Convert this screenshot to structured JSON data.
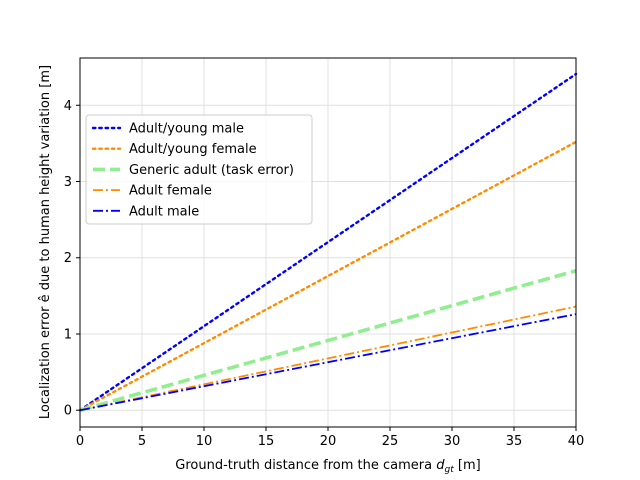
{
  "chart_data": {
    "type": "line",
    "title": "",
    "xlabel_main": "Ground-truth distance from the camera ",
    "xlabel_symbol": "d",
    "xlabel_subscript": "gt",
    "xlabel_unit": " [m]",
    "ylabel": "Localization error ê  due to human height variation [m]",
    "xlim": [
      0,
      40
    ],
    "ylim": [
      -0.22,
      4.62
    ],
    "xticks": [
      "0",
      "5",
      "10",
      "15",
      "20",
      "25",
      "30",
      "35",
      "40"
    ],
    "xtick_values": [
      0,
      5,
      10,
      15,
      20,
      25,
      30,
      35,
      40
    ],
    "yticks": [
      "0",
      "1",
      "2",
      "3",
      "4"
    ],
    "ytick_values": [
      0,
      1,
      2,
      3,
      4
    ],
    "grid": true,
    "legend_position": "upper-left",
    "series": [
      {
        "name": "Adult/young male",
        "x": [
          0,
          40
        ],
        "y": [
          0,
          4.41
        ],
        "color": "#0000ff",
        "style": "dotted",
        "dash": "2.4,3.9",
        "width": 2.4
      },
      {
        "name": "Adult/young female",
        "x": [
          0,
          40
        ],
        "y": [
          0,
          3.52
        ],
        "color": "#ff8c00",
        "style": "dotted",
        "dash": "2.4,3.9",
        "width": 2.4
      },
      {
        "name": "Generic adult (task error)",
        "x": [
          0,
          40
        ],
        "y": [
          0,
          1.83
        ],
        "color": "#90ee90",
        "style": "dashed",
        "dash": "12,5",
        "width": 3.6
      },
      {
        "name": "Adult female",
        "x": [
          0,
          40
        ],
        "y": [
          0,
          1.36
        ],
        "color": "#ff8c00",
        "style": "dash-dot",
        "dash": "10,3,2,3",
        "width": 1.8
      },
      {
        "name": "Adult male",
        "x": [
          0,
          40
        ],
        "y": [
          0,
          1.26
        ],
        "color": "#0000ff",
        "style": "dash-dot",
        "dash": "10,3,2,3",
        "width": 1.8
      }
    ]
  }
}
